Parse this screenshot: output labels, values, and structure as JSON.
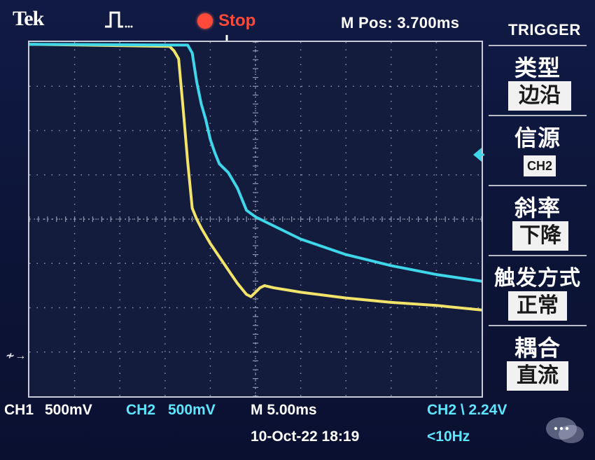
{
  "header": {
    "brand": "Tek",
    "acquire_icon": "pulse-icon",
    "run_state": "Stop",
    "horizontal_position": "M Pos: 3.700ms"
  },
  "trigger_menu": {
    "title": "TRIGGER",
    "items": [
      {
        "label": "类型",
        "value": "边沿"
      },
      {
        "label": "信源",
        "value": "CH2"
      },
      {
        "label": "斜率",
        "value": "下降"
      },
      {
        "label": "触发方式",
        "value": "正常"
      },
      {
        "label": "耦合",
        "value": "直流"
      }
    ]
  },
  "status": {
    "ch1_label": "CH1",
    "ch1_scale": "500mV",
    "ch2_label": "CH2",
    "ch2_scale": "500mV",
    "timebase": "M 5.00ms",
    "trigger_readout": "CH2 \\ 2.24V",
    "datetime": "10-Oct-22 18:19",
    "frequency": "<10Hz"
  },
  "colors": {
    "ch1": "#f2e36b",
    "ch2": "#3fd6ea",
    "stop": "#ff4a3a",
    "grid": "#8d95b0"
  },
  "chart_data": {
    "type": "line",
    "grid": {
      "divisions_x": 10,
      "divisions_y": 8
    },
    "series": [
      {
        "name": "CH1",
        "x": [
          0,
          3.1,
          3.2,
          3.3,
          3.4,
          3.5,
          3.6,
          3.7,
          3.8,
          4.0,
          4.2,
          4.4,
          4.6,
          4.8,
          4.9,
          5.0,
          5.1,
          5.2,
          5.4,
          6.0,
          7.0,
          8.0,
          9.0,
          10.0
        ],
        "y": [
          3.95,
          3.9,
          3.8,
          3.62,
          2.5,
          1.3,
          0.25,
          0.0,
          -0.2,
          -0.55,
          -0.85,
          -1.15,
          -1.45,
          -1.7,
          -1.75,
          -1.65,
          -1.55,
          -1.5,
          -1.55,
          -1.65,
          -1.78,
          -1.88,
          -1.95,
          -2.05
        ]
      },
      {
        "name": "CH2",
        "x": [
          0,
          3.5,
          3.6,
          3.7,
          3.8,
          3.9,
          4.0,
          4.1,
          4.2,
          4.4,
          4.6,
          4.8,
          5.0,
          5.4,
          6.0,
          7.0,
          8.0,
          9.0,
          10.0
        ],
        "y": [
          3.95,
          3.93,
          3.75,
          3.1,
          2.6,
          2.25,
          1.8,
          1.5,
          1.25,
          1.05,
          0.7,
          0.2,
          0.05,
          -0.15,
          -0.45,
          -0.8,
          -1.05,
          -1.25,
          -1.4
        ]
      }
    ]
  }
}
